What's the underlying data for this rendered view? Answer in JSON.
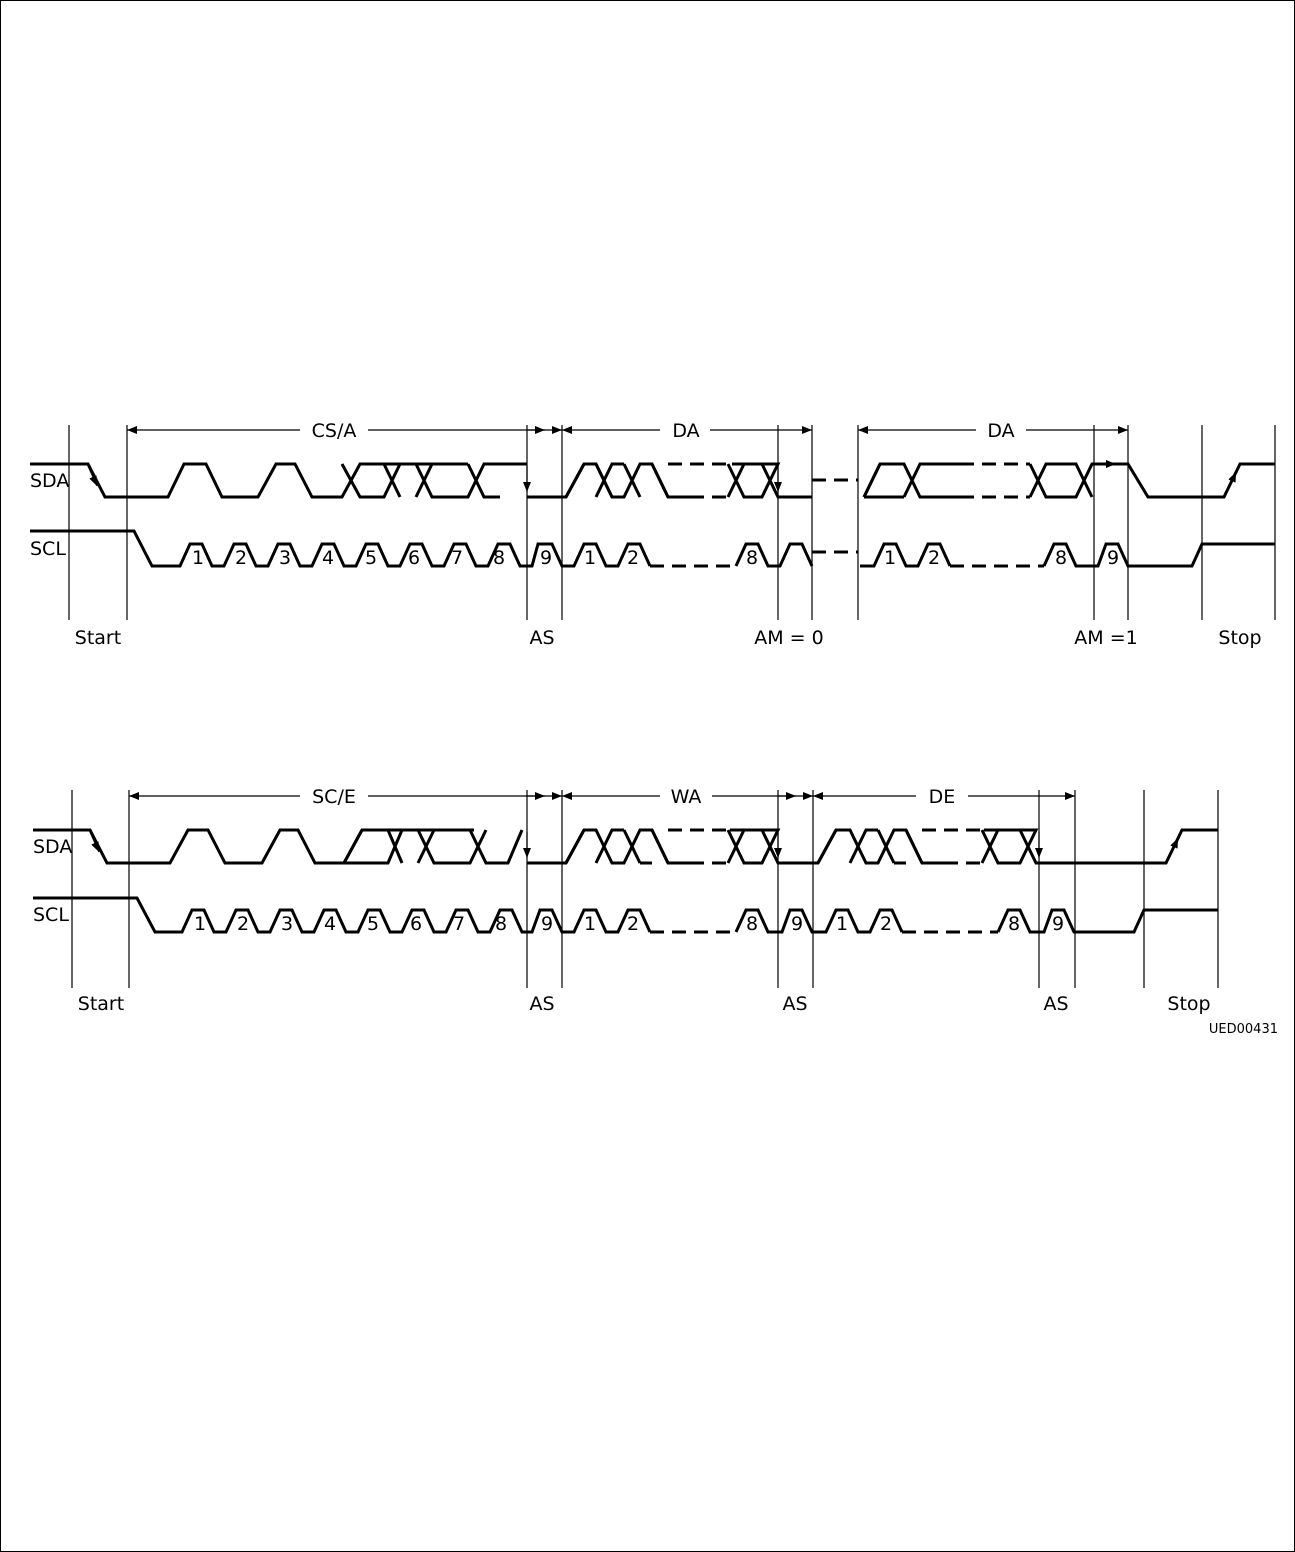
{
  "signals": {
    "sda": "SDA",
    "scl": "SCL"
  },
  "diagram1": {
    "fields": {
      "csa": "CS/A",
      "da1": "DA",
      "da2": "DA"
    },
    "markers": {
      "start": "Start",
      "as": "AS",
      "am0": "AM = 0",
      "am1": "AM =1",
      "stop": "Stop"
    }
  },
  "diagram2": {
    "fields": {
      "sce": "SC/E",
      "wa": "WA",
      "de": "DE"
    },
    "markers": {
      "start": "Start",
      "as1": "AS",
      "as2": "AS",
      "as3": "AS",
      "stop": "Stop"
    }
  },
  "clock_labels": [
    "1",
    "2",
    "3",
    "4",
    "5",
    "6",
    "7",
    "8",
    "9"
  ],
  "figure_id": "UED00431"
}
